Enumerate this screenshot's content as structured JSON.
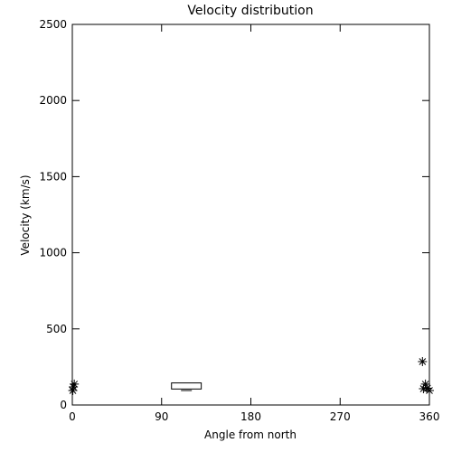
{
  "chart_data": {
    "type": "scatter",
    "title": "Velocity distribution",
    "x_label": "Angle from north",
    "y_label": "Velocity (km/s)",
    "xlim": [
      0,
      360
    ],
    "xticks": [
      0,
      90,
      180,
      270,
      360
    ],
    "ylim": [
      0,
      2500
    ],
    "yticks": [
      0,
      500,
      1000,
      1500,
      2000,
      2500
    ],
    "color": "#000000",
    "series": [
      {
        "x": [
          0.5,
          1,
          2,
          353,
          354,
          356,
          358,
          360
        ],
        "values": [
          95,
          119,
          137,
          285,
          107,
          137,
          110,
          95
        ]
      }
    ],
    "boxes": [
      {
        "x": [
          100,
          130
        ],
        "low": 105,
        "high": 145,
        "min": 95
      }
    ]
  }
}
